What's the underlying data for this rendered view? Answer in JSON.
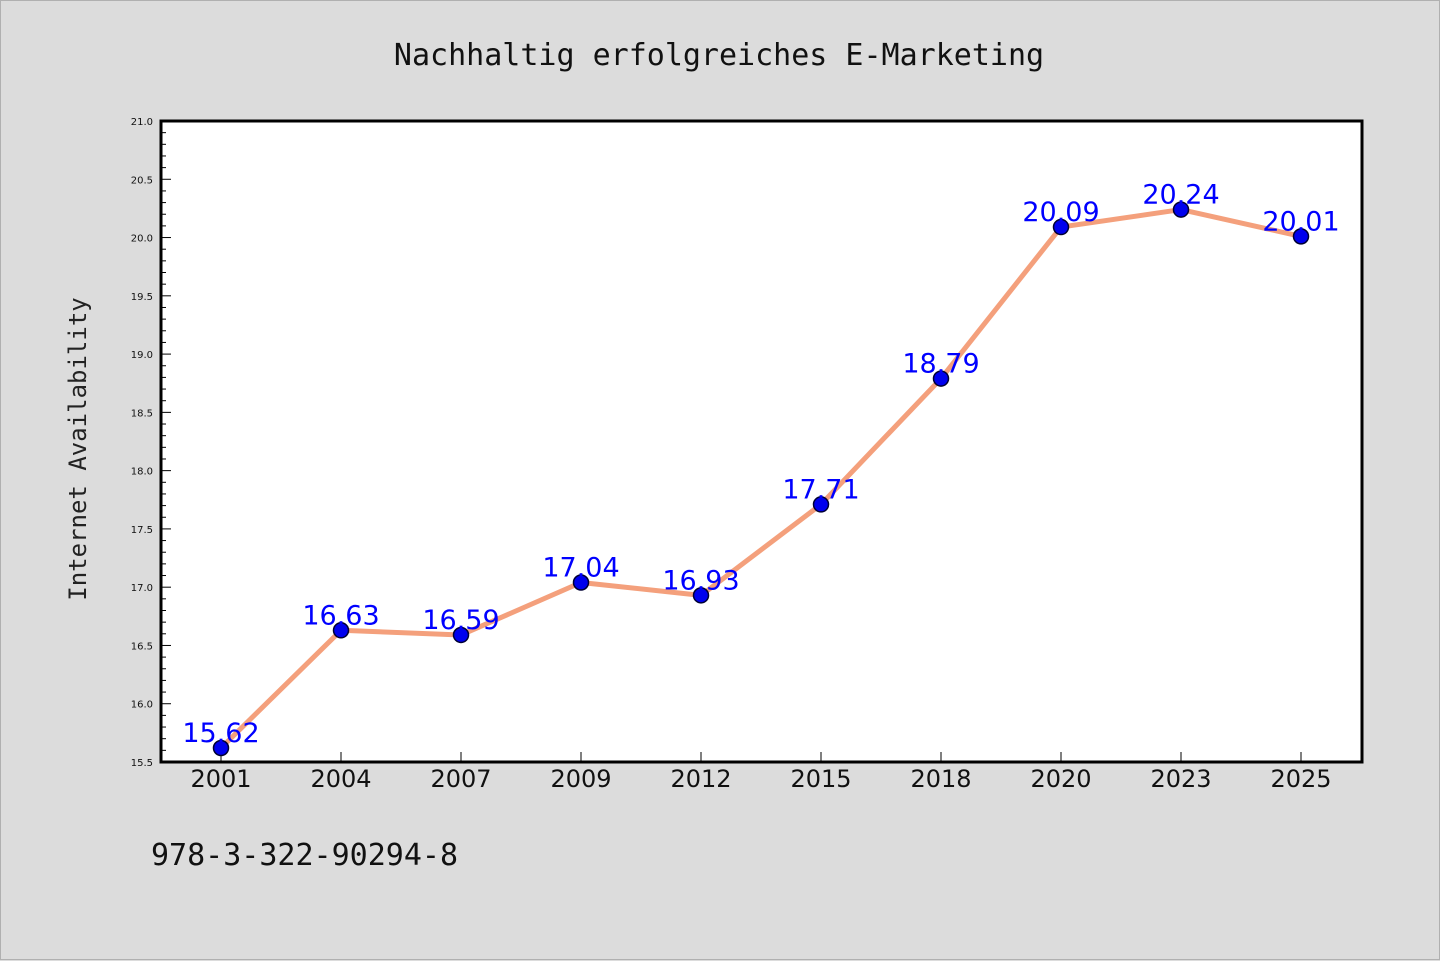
{
  "chart_data": {
    "type": "line",
    "title": "Nachhaltig erfolgreiches E-Marketing",
    "xlabel": "",
    "ylabel": "Internet Availability",
    "categories": [
      "2001",
      "2004",
      "2007",
      "2009",
      "2012",
      "2015",
      "2018",
      "2020",
      "2023",
      "2025"
    ],
    "series": [
      {
        "values": [
          15.62,
          16.63,
          16.59,
          17.04,
          16.93,
          17.71,
          18.79,
          20.09,
          20.24,
          20.01
        ],
        "data_labels": [
          "15.62",
          "16.63",
          "16.59",
          "17.04",
          "16.93",
          "17.71",
          "18.79",
          "20.09",
          "20.24",
          "20.01"
        ]
      }
    ],
    "ylim": [
      15.5,
      21.0
    ],
    "yticks": [
      "15.5",
      "16.0",
      "16.5",
      "17.0",
      "17.5",
      "18.0",
      "18.5",
      "19.0",
      "19.5",
      "20.0",
      "20.5",
      "21.0"
    ],
    "grid": false,
    "legend": "none",
    "colors": {
      "line": "#f4a07c",
      "marker": "#0000ee",
      "marker_edge": "#000033",
      "data_label": "#0000ff",
      "background": "#dcdcdc",
      "plot_area": "#ffffff"
    }
  },
  "footnote": "978-3-322-90294-8"
}
